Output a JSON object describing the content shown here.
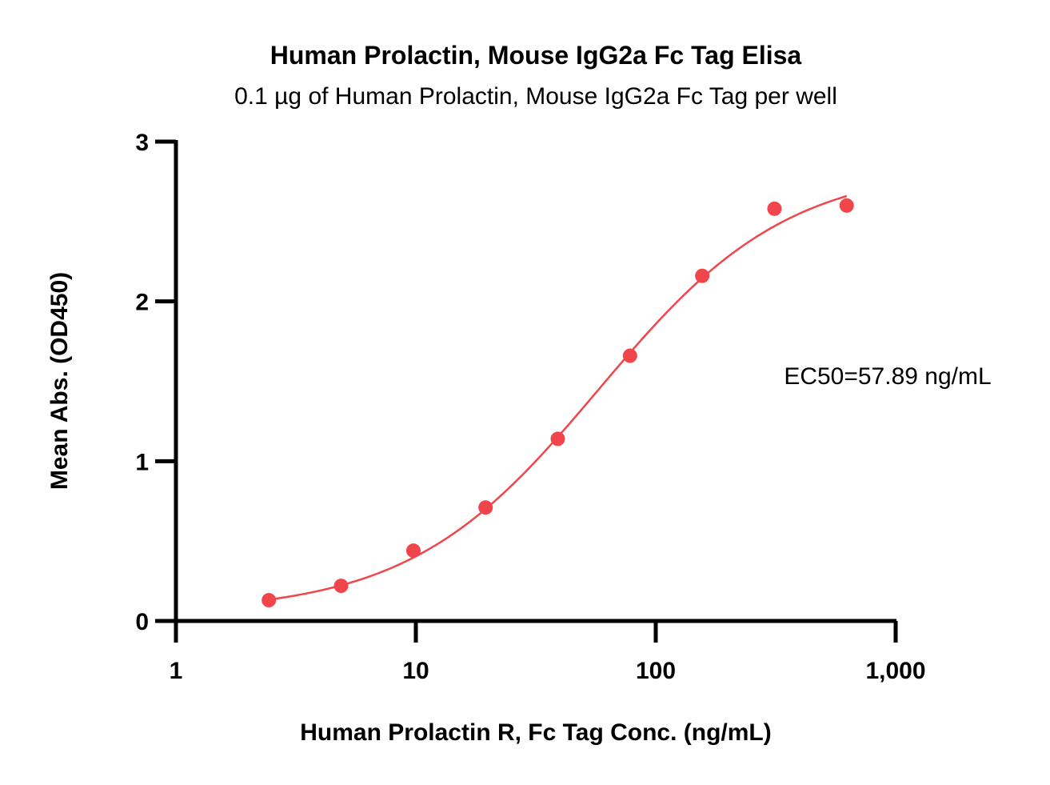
{
  "chart_data": {
    "type": "scatter",
    "title": "Human Prolactin, Mouse IgG2a Fc Tag Elisa",
    "subtitle": "0.1 µg of Human Prolactin, Mouse IgG2a Fc Tag  per well",
    "xlabel": "Human Prolactin R, Fc Tag Conc. (ng/mL)",
    "ylabel": "Mean Abs. (OD450)",
    "x_scale": "log",
    "xlim": [
      1,
      1000
    ],
    "ylim": [
      0,
      3
    ],
    "x_ticks": [
      1,
      10,
      100,
      1000
    ],
    "x_tick_labels": [
      "1",
      "10",
      "100",
      "1,000"
    ],
    "y_ticks": [
      0,
      1,
      2,
      3
    ],
    "y_tick_labels": [
      "0",
      "1",
      "2",
      "3"
    ],
    "grid": false,
    "color": "#f0464b",
    "series": [
      {
        "name": "Human Prolactin R, Fc Tag",
        "x": [
          2.44,
          4.88,
          9.77,
          19.53,
          39.06,
          78.13,
          156.25,
          312.5,
          625
        ],
        "y": [
          0.13,
          0.22,
          0.44,
          0.71,
          1.14,
          1.66,
          2.16,
          2.58,
          2.6
        ]
      }
    ],
    "fit": {
      "model": "4PL",
      "bottom": 0.05,
      "top": 2.85,
      "ec50": 57.89,
      "hill": 1.1,
      "x_range": [
        2.44,
        625
      ]
    },
    "annotation": "EC50=57.89 ng/mL"
  }
}
